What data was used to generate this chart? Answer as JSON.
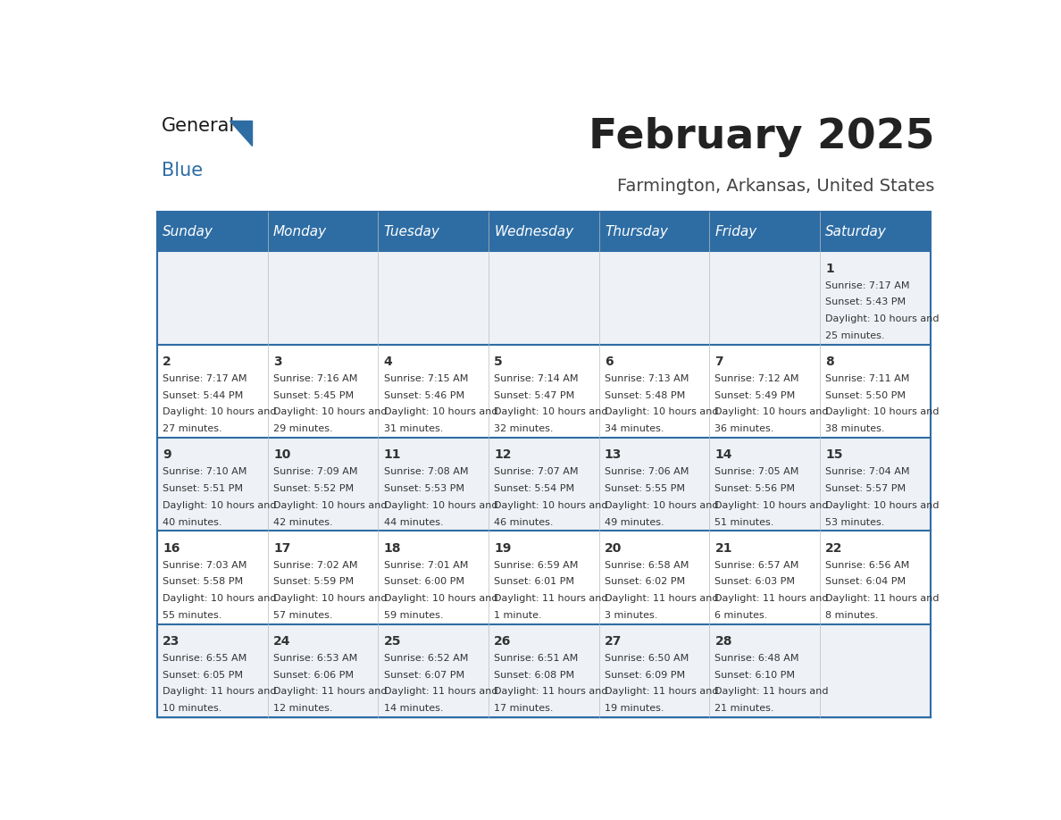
{
  "title": "February 2025",
  "subtitle": "Farmington, Arkansas, United States",
  "header_bg_color": "#2e6da4",
  "header_text_color": "#ffffff",
  "row_bg_even": "#eef2f7",
  "row_bg_odd": "#ffffff",
  "border_color": "#2e6da4",
  "day_headers": [
    "Sunday",
    "Monday",
    "Tuesday",
    "Wednesday",
    "Thursday",
    "Friday",
    "Saturday"
  ],
  "title_color": "#222222",
  "subtitle_color": "#444444",
  "cell_text_color": "#333333",
  "days": [
    {
      "day": 1,
      "col": 6,
      "row": 0,
      "sunrise": "7:17 AM",
      "sunset": "5:43 PM",
      "daylight": "10 hours and 25 minutes."
    },
    {
      "day": 2,
      "col": 0,
      "row": 1,
      "sunrise": "7:17 AM",
      "sunset": "5:44 PM",
      "daylight": "10 hours and 27 minutes."
    },
    {
      "day": 3,
      "col": 1,
      "row": 1,
      "sunrise": "7:16 AM",
      "sunset": "5:45 PM",
      "daylight": "10 hours and 29 minutes."
    },
    {
      "day": 4,
      "col": 2,
      "row": 1,
      "sunrise": "7:15 AM",
      "sunset": "5:46 PM",
      "daylight": "10 hours and 31 minutes."
    },
    {
      "day": 5,
      "col": 3,
      "row": 1,
      "sunrise": "7:14 AM",
      "sunset": "5:47 PM",
      "daylight": "10 hours and 32 minutes."
    },
    {
      "day": 6,
      "col": 4,
      "row": 1,
      "sunrise": "7:13 AM",
      "sunset": "5:48 PM",
      "daylight": "10 hours and 34 minutes."
    },
    {
      "day": 7,
      "col": 5,
      "row": 1,
      "sunrise": "7:12 AM",
      "sunset": "5:49 PM",
      "daylight": "10 hours and 36 minutes."
    },
    {
      "day": 8,
      "col": 6,
      "row": 1,
      "sunrise": "7:11 AM",
      "sunset": "5:50 PM",
      "daylight": "10 hours and 38 minutes."
    },
    {
      "day": 9,
      "col": 0,
      "row": 2,
      "sunrise": "7:10 AM",
      "sunset": "5:51 PM",
      "daylight": "10 hours and 40 minutes."
    },
    {
      "day": 10,
      "col": 1,
      "row": 2,
      "sunrise": "7:09 AM",
      "sunset": "5:52 PM",
      "daylight": "10 hours and 42 minutes."
    },
    {
      "day": 11,
      "col": 2,
      "row": 2,
      "sunrise": "7:08 AM",
      "sunset": "5:53 PM",
      "daylight": "10 hours and 44 minutes."
    },
    {
      "day": 12,
      "col": 3,
      "row": 2,
      "sunrise": "7:07 AM",
      "sunset": "5:54 PM",
      "daylight": "10 hours and 46 minutes."
    },
    {
      "day": 13,
      "col": 4,
      "row": 2,
      "sunrise": "7:06 AM",
      "sunset": "5:55 PM",
      "daylight": "10 hours and 49 minutes."
    },
    {
      "day": 14,
      "col": 5,
      "row": 2,
      "sunrise": "7:05 AM",
      "sunset": "5:56 PM",
      "daylight": "10 hours and 51 minutes."
    },
    {
      "day": 15,
      "col": 6,
      "row": 2,
      "sunrise": "7:04 AM",
      "sunset": "5:57 PM",
      "daylight": "10 hours and 53 minutes."
    },
    {
      "day": 16,
      "col": 0,
      "row": 3,
      "sunrise": "7:03 AM",
      "sunset": "5:58 PM",
      "daylight": "10 hours and 55 minutes."
    },
    {
      "day": 17,
      "col": 1,
      "row": 3,
      "sunrise": "7:02 AM",
      "sunset": "5:59 PM",
      "daylight": "10 hours and 57 minutes."
    },
    {
      "day": 18,
      "col": 2,
      "row": 3,
      "sunrise": "7:01 AM",
      "sunset": "6:00 PM",
      "daylight": "10 hours and 59 minutes."
    },
    {
      "day": 19,
      "col": 3,
      "row": 3,
      "sunrise": "6:59 AM",
      "sunset": "6:01 PM",
      "daylight": "11 hours and 1 minute."
    },
    {
      "day": 20,
      "col": 4,
      "row": 3,
      "sunrise": "6:58 AM",
      "sunset": "6:02 PM",
      "daylight": "11 hours and 3 minutes."
    },
    {
      "day": 21,
      "col": 5,
      "row": 3,
      "sunrise": "6:57 AM",
      "sunset": "6:03 PM",
      "daylight": "11 hours and 6 minutes."
    },
    {
      "day": 22,
      "col": 6,
      "row": 3,
      "sunrise": "6:56 AM",
      "sunset": "6:04 PM",
      "daylight": "11 hours and 8 minutes."
    },
    {
      "day": 23,
      "col": 0,
      "row": 4,
      "sunrise": "6:55 AM",
      "sunset": "6:05 PM",
      "daylight": "11 hours and 10 minutes."
    },
    {
      "day": 24,
      "col": 1,
      "row": 4,
      "sunrise": "6:53 AM",
      "sunset": "6:06 PM",
      "daylight": "11 hours and 12 minutes."
    },
    {
      "day": 25,
      "col": 2,
      "row": 4,
      "sunrise": "6:52 AM",
      "sunset": "6:07 PM",
      "daylight": "11 hours and 14 minutes."
    },
    {
      "day": 26,
      "col": 3,
      "row": 4,
      "sunrise": "6:51 AM",
      "sunset": "6:08 PM",
      "daylight": "11 hours and 17 minutes."
    },
    {
      "day": 27,
      "col": 4,
      "row": 4,
      "sunrise": "6:50 AM",
      "sunset": "6:09 PM",
      "daylight": "11 hours and 19 minutes."
    },
    {
      "day": 28,
      "col": 5,
      "row": 4,
      "sunrise": "6:48 AM",
      "sunset": "6:10 PM",
      "daylight": "11 hours and 21 minutes."
    }
  ]
}
